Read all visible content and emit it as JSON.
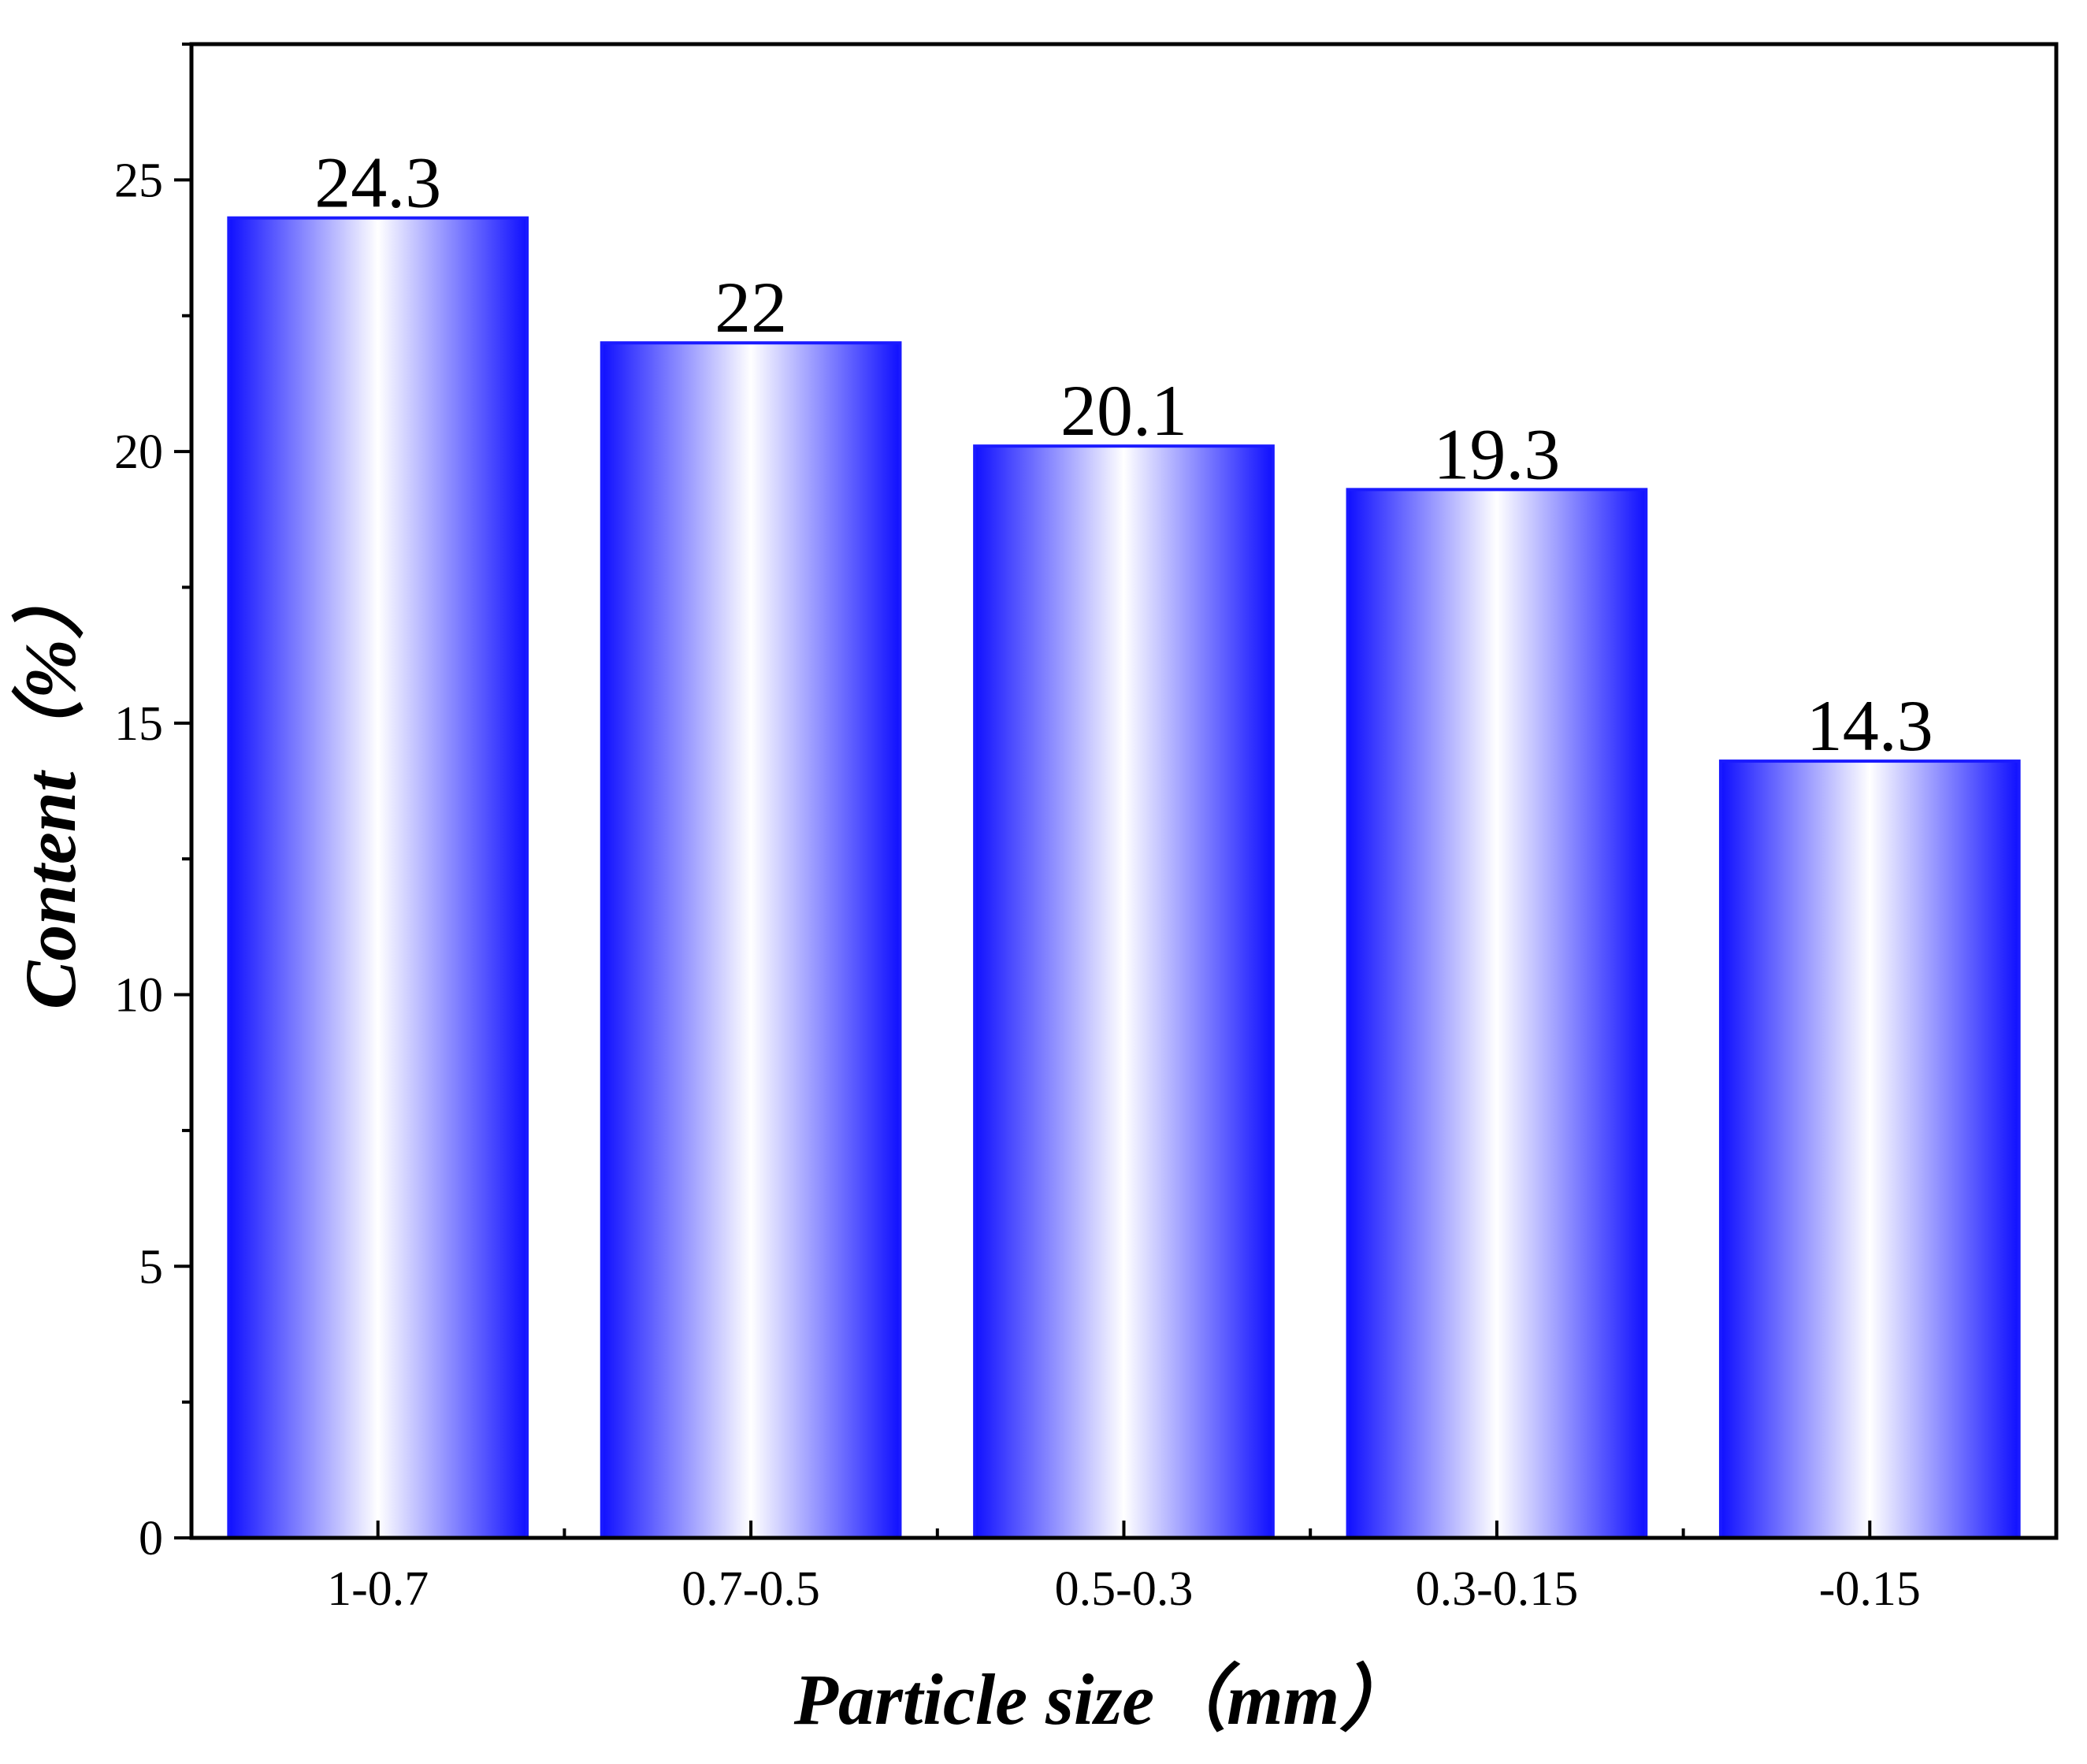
{
  "chart_data": {
    "type": "bar",
    "categories": [
      "1-0.7",
      "0.7-0.5",
      "0.5-0.3",
      "0.3-0.15",
      "-0.15"
    ],
    "values": [
      24.3,
      22,
      20.1,
      19.3,
      14.3
    ],
    "data_labels": [
      "24.3",
      "22",
      "20.1",
      "19.3",
      "14.3"
    ],
    "xlabel": "Particle size（mm）",
    "ylabel": "Content（%）",
    "ylim": [
      0,
      27.5
    ],
    "yticks": [
      0,
      5,
      10,
      15,
      20,
      25
    ],
    "ytick_labels": [
      "0",
      "5",
      "10",
      "15",
      "20",
      "25"
    ],
    "grid": false,
    "colors": {
      "bar_edge": "#1a1aff",
      "bar_gradient_edge": "#1010ff",
      "bar_gradient_center": "#ffffff"
    }
  }
}
